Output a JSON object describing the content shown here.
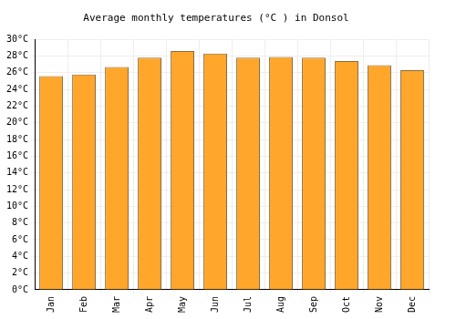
{
  "chart_data": {
    "type": "bar",
    "title": "Average monthly temperatures (°C ) in Donsol",
    "categories": [
      "Jan",
      "Feb",
      "Mar",
      "Apr",
      "May",
      "Jun",
      "Jul",
      "Aug",
      "Sep",
      "Oct",
      "Nov",
      "Dec"
    ],
    "values": [
      25.6,
      25.8,
      26.7,
      27.8,
      28.6,
      28.3,
      27.8,
      27.9,
      27.8,
      27.4,
      26.9,
      26.3
    ],
    "color": "#ffa62b",
    "ylim": [
      0,
      30
    ],
    "yticks": [
      {
        "value": 0,
        "label": "0°C"
      },
      {
        "value": 2,
        "label": "2°C"
      },
      {
        "value": 4,
        "label": "4°C"
      },
      {
        "value": 6,
        "label": "6°C"
      },
      {
        "value": 8,
        "label": "8°C"
      },
      {
        "value": 10,
        "label": "10°C"
      },
      {
        "value": 12,
        "label": "12°C"
      },
      {
        "value": 14,
        "label": "14°C"
      },
      {
        "value": 16,
        "label": "16°C"
      },
      {
        "value": 18,
        "label": "18°C"
      },
      {
        "value": 20,
        "label": "20°C"
      },
      {
        "value": 22,
        "label": "22°C"
      },
      {
        "value": 24,
        "label": "24°C"
      },
      {
        "value": 26,
        "label": "26°C"
      },
      {
        "value": 28,
        "label": "28°C"
      },
      {
        "value": 30,
        "label": "30°C"
      }
    ],
    "grid": true
  }
}
